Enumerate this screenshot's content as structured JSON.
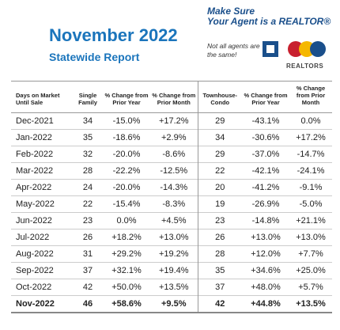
{
  "header": {
    "title": "November 2022",
    "subtitle": "Statewide Report"
  },
  "logo": {
    "line1": "Make Sure",
    "line2": "Your Agent is a REALTOR®",
    "slogan": "Not all agents are the same!",
    "org": "REALTORS"
  },
  "table": {
    "columns": [
      "Days on Market Until Sale",
      "Single Family",
      "% Change from Prior Year",
      "% Change from Prior Month",
      "Townhouse-Condo",
      "% Change from Prior Year",
      "% Change from Prior Month"
    ],
    "rows": [
      [
        "Dec-2021",
        "34",
        "-15.0%",
        "+17.2%",
        "29",
        "-43.1%",
        "0.0%"
      ],
      [
        "Jan-2022",
        "35",
        "-18.6%",
        "+2.9%",
        "34",
        "-30.6%",
        "+17.2%"
      ],
      [
        "Feb-2022",
        "32",
        "-20.0%",
        "-8.6%",
        "29",
        "-37.0%",
        "-14.7%"
      ],
      [
        "Mar-2022",
        "28",
        "-22.2%",
        "-12.5%",
        "22",
        "-42.1%",
        "-24.1%"
      ],
      [
        "Apr-2022",
        "24",
        "-20.0%",
        "-14.3%",
        "20",
        "-41.2%",
        "-9.1%"
      ],
      [
        "May-2022",
        "22",
        "-15.4%",
        "-8.3%",
        "19",
        "-26.9%",
        "-5.0%"
      ],
      [
        "Jun-2022",
        "23",
        "0.0%",
        "+4.5%",
        "23",
        "-14.8%",
        "+21.1%"
      ],
      [
        "Jul-2022",
        "26",
        "+18.2%",
        "+13.0%",
        "26",
        "+13.0%",
        "+13.0%"
      ],
      [
        "Aug-2022",
        "31",
        "+29.2%",
        "+19.2%",
        "28",
        "+12.0%",
        "+7.7%"
      ],
      [
        "Sep-2022",
        "37",
        "+32.1%",
        "+19.4%",
        "35",
        "+34.6%",
        "+25.0%"
      ],
      [
        "Oct-2022",
        "42",
        "+50.0%",
        "+13.5%",
        "37",
        "+48.0%",
        "+5.7%"
      ],
      [
        "Nov-2022",
        "46",
        "+58.6%",
        "+9.5%",
        "42",
        "+44.8%",
        "+13.5%"
      ]
    ]
  }
}
